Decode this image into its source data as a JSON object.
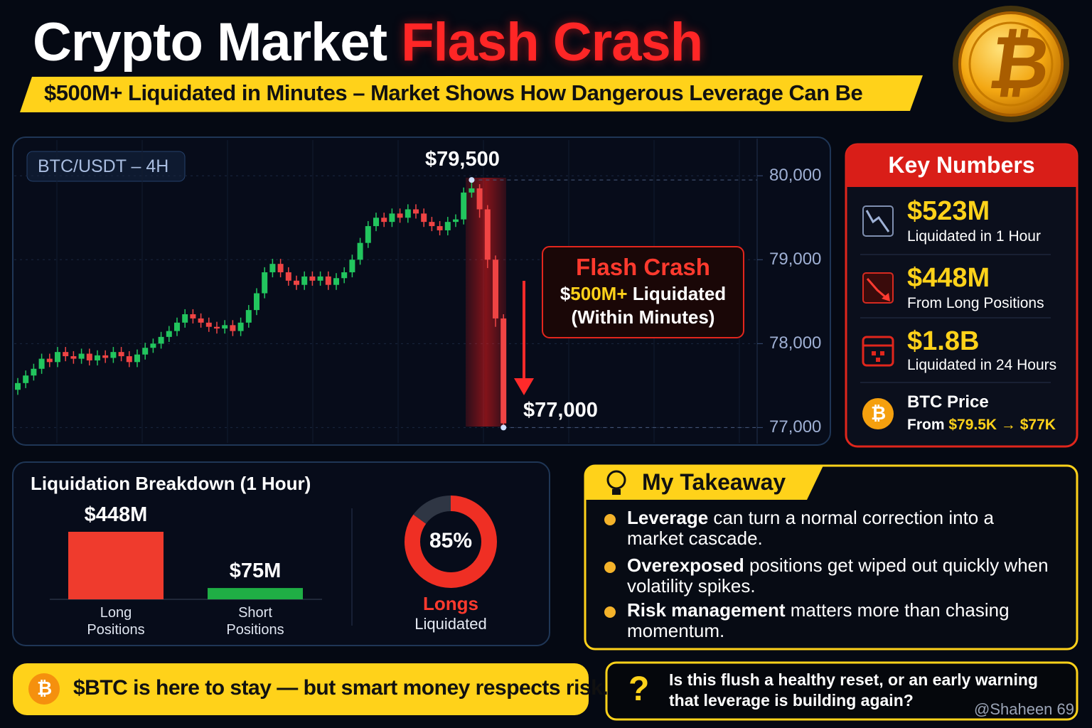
{
  "header": {
    "title_white": "Crypto Market",
    "title_red": "Flash Crash",
    "subtitle": "$500M+ Liquidated in Minutes – Market Shows How Dangerous Leverage Can Be"
  },
  "coin_symbol": "₿",
  "chart_data": [
    {
      "type": "candlestick",
      "title": "BTC/USDT – 4H",
      "up_color": "#22c55e",
      "down_color": "#ef4444",
      "open": [
        77450,
        77530,
        77620,
        77700,
        77820,
        77780,
        77900,
        77850,
        77820,
        77880,
        77800,
        77860,
        77830,
        77900,
        77850,
        77780,
        77870,
        77950,
        78000,
        78080,
        78150,
        78250,
        78350,
        78300,
        78250,
        78200,
        78180,
        78220,
        78150,
        78250,
        78400,
        78600,
        78850,
        78950,
        78850,
        78750,
        78700,
        78800,
        78750,
        78800,
        78700,
        78780,
        78850,
        79000,
        79200,
        79400,
        79500,
        79450,
        79550,
        79500,
        79600,
        79550,
        79450,
        79400,
        79350,
        79450,
        79480,
        79800,
        79850,
        79600,
        79000,
        78300
      ],
      "high": [
        77590,
        77680,
        77760,
        77880,
        77880,
        77960,
        77960,
        77910,
        77940,
        77940,
        77920,
        77920,
        77960,
        77960,
        77910,
        77930,
        78010,
        78060,
        78140,
        78210,
        78310,
        78410,
        78410,
        78360,
        78310,
        78260,
        78280,
        78280,
        78310,
        78460,
        78660,
        78910,
        79010,
        79010,
        78910,
        78810,
        78860,
        78860,
        78860,
        78860,
        78840,
        78910,
        79060,
        79260,
        79460,
        79560,
        79560,
        79610,
        79610,
        79660,
        79660,
        79610,
        79510,
        79460,
        79510,
        79540,
        79860,
        79950,
        79900,
        79650,
        79050,
        78350
      ],
      "low": [
        77390,
        77470,
        77560,
        77640,
        77720,
        77720,
        77790,
        77760,
        77760,
        77740,
        77740,
        77770,
        77770,
        77790,
        77720,
        77720,
        77810,
        77890,
        77940,
        78020,
        78090,
        78190,
        78240,
        78190,
        78140,
        78120,
        78120,
        78090,
        78090,
        78190,
        78340,
        78540,
        78790,
        78790,
        78690,
        78640,
        78640,
        78690,
        78690,
        78640,
        78640,
        78720,
        78790,
        78940,
        79140,
        79340,
        79390,
        79390,
        79440,
        79440,
        79490,
        79390,
        79340,
        79290,
        79290,
        79390,
        79420,
        79740,
        79500,
        78900,
        78200,
        77000
      ],
      "close": [
        77530,
        77620,
        77700,
        77820,
        77780,
        77900,
        77850,
        77820,
        77880,
        77800,
        77860,
        77830,
        77900,
        77850,
        77780,
        77870,
        77950,
        78000,
        78080,
        78150,
        78250,
        78350,
        78300,
        78250,
        78200,
        78180,
        78220,
        78150,
        78250,
        78400,
        78600,
        78850,
        78950,
        78850,
        78750,
        78700,
        78800,
        78750,
        78800,
        78700,
        78780,
        78850,
        79000,
        79200,
        79400,
        79500,
        79450,
        79550,
        79500,
        79600,
        79550,
        79450,
        79400,
        79350,
        79450,
        79480,
        79800,
        79850,
        79600,
        79000,
        78300,
        77050
      ],
      "ylim": [
        76800,
        80400
      ],
      "yticks": [
        {
          "value": 77000,
          "label": "77,000"
        },
        {
          "value": 78000,
          "label": "78,000"
        },
        {
          "value": 79000,
          "label": "79,000"
        },
        {
          "value": 80000,
          "label": "80,000"
        }
      ],
      "annotations": {
        "peak": "$79,500",
        "low": "$77,000",
        "callout_title": "Flash Crash",
        "callout_pre": "$",
        "callout_highlight": "500M+",
        "callout_post": "Liquidated",
        "callout_note": "(Within Minutes)"
      }
    },
    {
      "type": "bar",
      "title": "Liquidation Breakdown (1 Hour)",
      "categories": [
        "Long Positions",
        "Short Positions"
      ],
      "values": [
        448,
        75
      ],
      "value_labels": [
        "$448M",
        "$75M"
      ],
      "colors": [
        "#ef3b2d",
        "#1fae45"
      ]
    },
    {
      "type": "donut",
      "values": [
        85,
        15
      ],
      "value_labels": [
        "85%",
        null
      ],
      "colors": [
        "#ef2f24",
        "#2f3644"
      ],
      "caption_top": "Longs",
      "caption_bottom": "Liquidated"
    }
  ],
  "key_numbers": {
    "title": "Key Numbers",
    "items": [
      {
        "value": "$523M",
        "label": "Liquidated in 1 Hour"
      },
      {
        "value": "$448M",
        "label": "From Long Positions"
      },
      {
        "value": "$1.8B",
        "label": "Liquidated in 24 Hours"
      }
    ],
    "price": {
      "title": "BTC Price",
      "from": "From",
      "range": "$79.5K → $77K"
    }
  },
  "takeaway": {
    "title": "My Takeaway",
    "items": [
      {
        "bold": "Leverage",
        "rest": "can turn a normal correction into a market cascade."
      },
      {
        "bold": "Overexposed",
        "rest": "positions get wiped out quickly when volatility spikes."
      },
      {
        "bold": "Risk management",
        "rest": "matters more than chasing momentum."
      }
    ]
  },
  "footer": {
    "statement": "$BTC is here to stay — but smart money respects risk.",
    "question_mark": "?",
    "question": "Is this flush a healthy reset, or an early warning that leverage is building again?",
    "watermark": "@Shaheen 69"
  }
}
